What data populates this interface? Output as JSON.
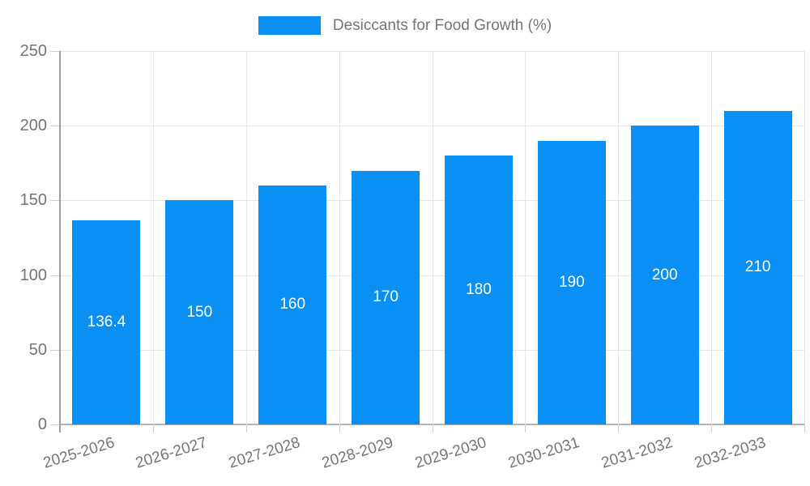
{
  "legend": {
    "label": "Desiccants for Food Growth (%)"
  },
  "chart_data": {
    "type": "bar",
    "title": "Desiccants for Food Growth (%)",
    "categories": [
      "2025-2026",
      "2026-2027",
      "2027-2028",
      "2028-2029",
      "2029-2030",
      "2030-2031",
      "2031-2032",
      "2032-2033"
    ],
    "series": [
      {
        "name": "Desiccants for Food Growth (%)",
        "values": [
          136.4,
          150,
          160,
          170,
          180,
          190,
          200,
          210
        ]
      }
    ],
    "bar_labels": [
      "136.4",
      "150",
      "160",
      "170",
      "180",
      "190",
      "200",
      "210"
    ],
    "xlabel": "",
    "ylabel": "",
    "ylim": [
      0,
      250
    ],
    "yticks": [
      0,
      50,
      100,
      150,
      200,
      250
    ],
    "grid": true,
    "legend_position": "top-center",
    "x_label_rotation_deg": -17,
    "colors": {
      "bar": "#0a8ff4",
      "value_label": "#ffffff",
      "axis_text": "#757575",
      "gridline": "#e6e6e6",
      "tick": "#cccccc",
      "y_axis_line": "#9e9e9e",
      "baseline": "#b3b3b3",
      "background": "#ffffff"
    }
  }
}
